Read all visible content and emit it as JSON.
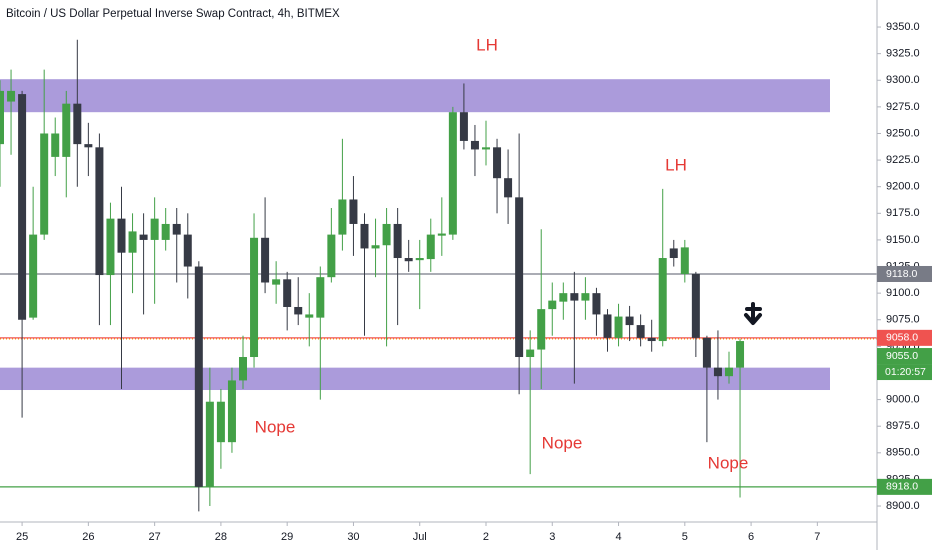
{
  "chart_data": {
    "type": "candlestick",
    "title": "Bitcoin / US Dollar Perpetual Inverse Swap Contract, 4h, BITMEX",
    "up_color": "#43a047",
    "down_color": "#363a45",
    "open": [
      9240,
      9280,
      9287,
      9077,
      9155,
      9228,
      9228,
      9278,
      9240,
      9237,
      9117,
      9170,
      9138,
      9155,
      9150,
      9150,
      9165,
      9155,
      9125,
      8918,
      8960,
      8960,
      9018,
      9040,
      9152,
      9108,
      9113,
      9087,
      9077,
      9077,
      9115,
      9155,
      9188,
      9165,
      9142,
      9145,
      9165,
      9133,
      9131,
      9132,
      9154,
      9155,
      9270,
      9243,
      9235,
      9237,
      9208,
      9190,
      9040,
      9047,
      9085,
      9092,
      9100,
      9093,
      9100,
      9080,
      9058,
      9078,
      9070,
      9058,
      9055,
      9142,
      9118,
      9118,
      9058,
      9030,
      9022,
      9030
    ],
    "high": [
      9300,
      9310,
      9290,
      9200,
      9310,
      9265,
      9290,
      9338,
      9260,
      9250,
      9185,
      9200,
      9175,
      9175,
      9190,
      9180,
      9180,
      9175,
      9130,
      9030,
      9010,
      9030,
      9060,
      9175,
      9190,
      9130,
      9120,
      9115,
      9100,
      9125,
      9180,
      9245,
      9210,
      9175,
      9170,
      9180,
      9180,
      9150,
      9150,
      9170,
      9190,
      9275,
      9297,
      9258,
      9262,
      9245,
      9235,
      9250,
      9065,
      9160,
      9110,
      9110,
      9120,
      9115,
      9105,
      9085,
      9090,
      9088,
      9080,
      9075,
      9198,
      9150,
      9150,
      9120,
      9060,
      9065,
      9045,
      9057
    ],
    "low": [
      9200,
      9230,
      8983,
      9075,
      9150,
      9210,
      9190,
      9200,
      9210,
      9070,
      9070,
      9010,
      9100,
      9080,
      9090,
      9140,
      9110,
      9095,
      8895,
      8900,
      8935,
      8950,
      9010,
      9030,
      9100,
      9090,
      9065,
      9070,
      9050,
      9000,
      9110,
      9140,
      9135,
      9060,
      9115,
      9050,
      9070,
      9120,
      9085,
      9120,
      9135,
      9150,
      9235,
      9210,
      9220,
      9175,
      9165,
      9005,
      8930,
      9010,
      9060,
      9075,
      9015,
      9075,
      9060,
      9045,
      9050,
      9055,
      9050,
      9045,
      9050,
      9125,
      9110,
      9040,
      8960,
      9000,
      9015,
      8908
    ],
    "close": [
      9290,
      9290,
      9075,
      9155,
      9250,
      9250,
      9278,
      9240,
      9237,
      9117,
      9170,
      9138,
      9158,
      9150,
      9170,
      9165,
      9155,
      9125,
      8918,
      8998,
      8998,
      9018,
      9040,
      9152,
      9110,
      9113,
      9087,
      9080,
      9080,
      9115,
      9155,
      9188,
      9165,
      9142,
      9145,
      9165,
      9133,
      9130,
      9133,
      9155,
      9156,
      9270,
      9243,
      9235,
      9237,
      9208,
      9190,
      9040,
      9047,
      9085,
      9093,
      9100,
      9093,
      9100,
      9080,
      9058,
      9078,
      9070,
      9058,
      9055,
      9133,
      9133,
      9143,
      9058,
      9030,
      9022,
      9030,
      9055
    ],
    "xlim": [
      0,
      79.4
    ],
    "xticks": [
      {
        "value": 2,
        "label": "25"
      },
      {
        "value": 8,
        "label": "26"
      },
      {
        "value": 14,
        "label": "27"
      },
      {
        "value": 20,
        "label": "28"
      },
      {
        "value": 26,
        "label": "29"
      },
      {
        "value": 32,
        "label": "30"
      },
      {
        "value": 38,
        "label": "Jul"
      },
      {
        "value": 44,
        "label": "2"
      },
      {
        "value": 50,
        "label": "3"
      },
      {
        "value": 56,
        "label": "4"
      },
      {
        "value": 62,
        "label": "5"
      },
      {
        "value": 68,
        "label": "6"
      },
      {
        "value": 74,
        "label": "7"
      }
    ],
    "ylim": [
      8885,
      9375.4
    ],
    "yticks": [
      {
        "value": 9350,
        "label": "9350.0"
      },
      {
        "value": 9325,
        "label": "9325.0"
      },
      {
        "value": 9300,
        "label": "9300.0"
      },
      {
        "value": 9275,
        "label": "9275.0"
      },
      {
        "value": 9250,
        "label": "9250.0"
      },
      {
        "value": 9225,
        "label": "9225.0"
      },
      {
        "value": 9200,
        "label": "9200.0"
      },
      {
        "value": 9175,
        "label": "9175.0"
      },
      {
        "value": 9150,
        "label": "9150.0"
      },
      {
        "value": 9125,
        "label": "9125.0"
      },
      {
        "value": 9100,
        "label": "9100.0"
      },
      {
        "value": 9075,
        "label": "9075.0"
      },
      {
        "value": 9050,
        "label": "9050.0"
      },
      {
        "value": 9025,
        "label": "9025.0"
      },
      {
        "value": 9000,
        "label": "9000.0"
      },
      {
        "value": 8975,
        "label": "8975.0"
      },
      {
        "value": 8950,
        "label": "8950.0"
      },
      {
        "value": 8925,
        "label": "8925.0"
      },
      {
        "value": 8900,
        "label": "8900.0"
      }
    ],
    "zones": [
      {
        "low": 9270,
        "high": 9301,
        "color": "#ab9bdb"
      },
      {
        "low": 9009,
        "high": 9030,
        "color": "#ab9bdb"
      }
    ],
    "levels": [
      {
        "value": 9118,
        "label": "9118.0",
        "color": "#787b86"
      },
      {
        "value": 9058,
        "label": "9058.0",
        "color": "#ef5350"
      },
      {
        "value": 8918,
        "label": "8918.0",
        "color": "#43a047"
      }
    ],
    "last_price": {
      "value": 9055,
      "label": "9055.0",
      "color": "#43a047"
    },
    "countdown": "01:20:57",
    "annotations": [
      "LH",
      "LH",
      "Nope",
      "Nope",
      "Nope"
    ]
  }
}
